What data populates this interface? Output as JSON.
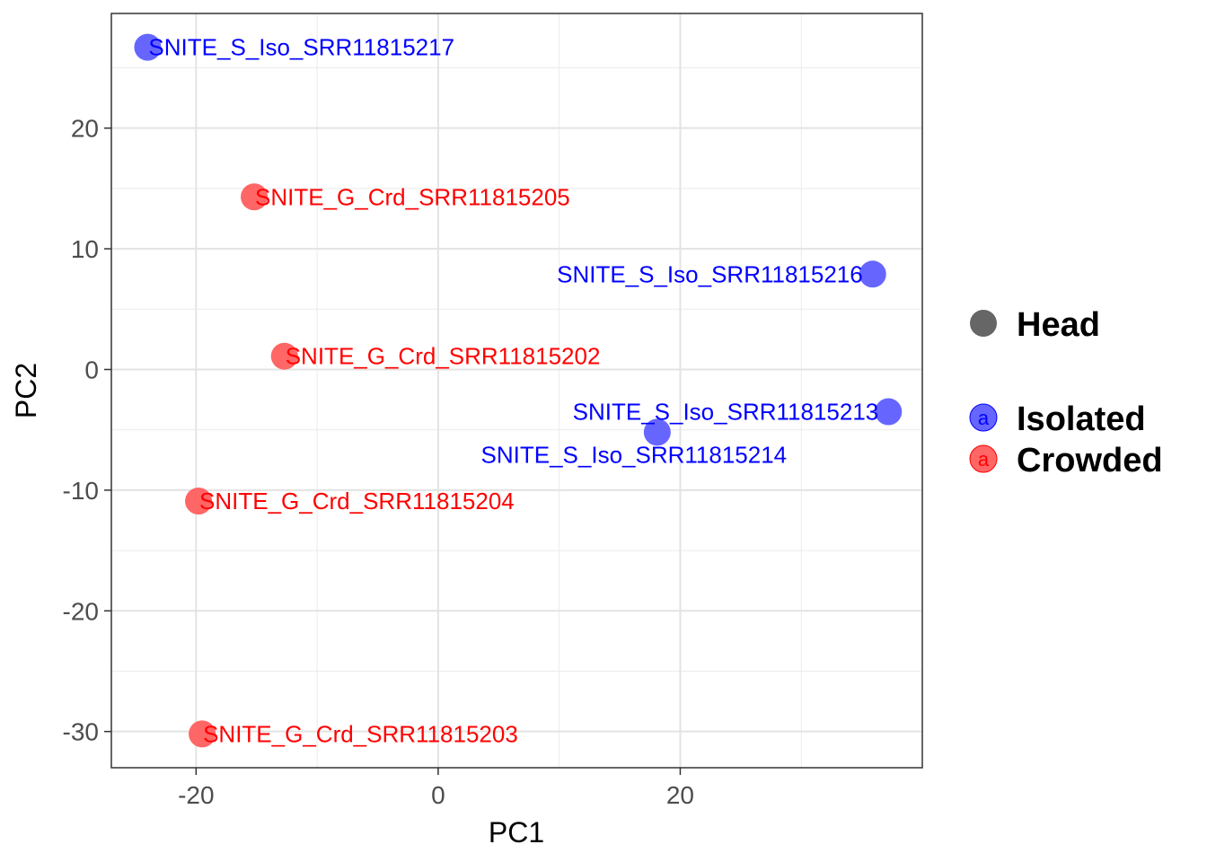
{
  "chart_data": {
    "type": "scatter",
    "xlabel": "PC1",
    "ylabel": "PC2",
    "xlim": [
      -27,
      40
    ],
    "ylim": [
      -33,
      29.5
    ],
    "x_ticks": [
      -20,
      0,
      20
    ],
    "x_tick_labels": [
      "-20",
      "0",
      "20"
    ],
    "y_ticks": [
      -30,
      -20,
      -10,
      0,
      10,
      20
    ],
    "y_tick_labels": [
      "-30",
      "-20",
      "-10",
      "0",
      "10",
      "20"
    ],
    "grid": true,
    "legend_position": "right",
    "colors": {
      "Isolated": "#6666ff",
      "Crowded": "#ff6666"
    },
    "label_colors": {
      "Isolated": "#0000ff",
      "Crowded": "#ff0000"
    },
    "points": [
      {
        "label": "SNITE_S_Iso_SRR11815217",
        "x": -24,
        "y": 26.7,
        "group": "Isolated",
        "label_side": "right"
      },
      {
        "label": "SNITE_G_Crd_SRR11815205",
        "x": -15.2,
        "y": 14.3,
        "group": "Crowded",
        "label_side": "right"
      },
      {
        "label": "SNITE_S_Iso_SRR11815216",
        "x": 35.9,
        "y": 7.9,
        "group": "Isolated",
        "label_side": "left"
      },
      {
        "label": "SNITE_G_Crd_SRR11815202",
        "x": -12.7,
        "y": 1.1,
        "group": "Crowded",
        "label_side": "right"
      },
      {
        "label": "SNITE_S_Iso_SRR11815213",
        "x": 37.2,
        "y": -3.5,
        "group": "Isolated",
        "label_side": "left"
      },
      {
        "label": "SNITE_S_Iso_SRR11815214",
        "x": 18.1,
        "y": -5.2,
        "group": "Isolated",
        "label_side": "below"
      },
      {
        "label": "SNITE_G_Crd_SRR11815204",
        "x": -19.8,
        "y": -10.9,
        "group": "Crowded",
        "label_side": "right"
      },
      {
        "label": "SNITE_G_Crd_SRR11815203",
        "x": -19.5,
        "y": -30.2,
        "group": "Crowded",
        "label_side": "right"
      }
    ],
    "legend": {
      "shape": {
        "label": "Head"
      },
      "groups": [
        {
          "label": "Isolated",
          "key": "a"
        },
        {
          "label": "Crowded",
          "key": "a"
        }
      ]
    }
  }
}
